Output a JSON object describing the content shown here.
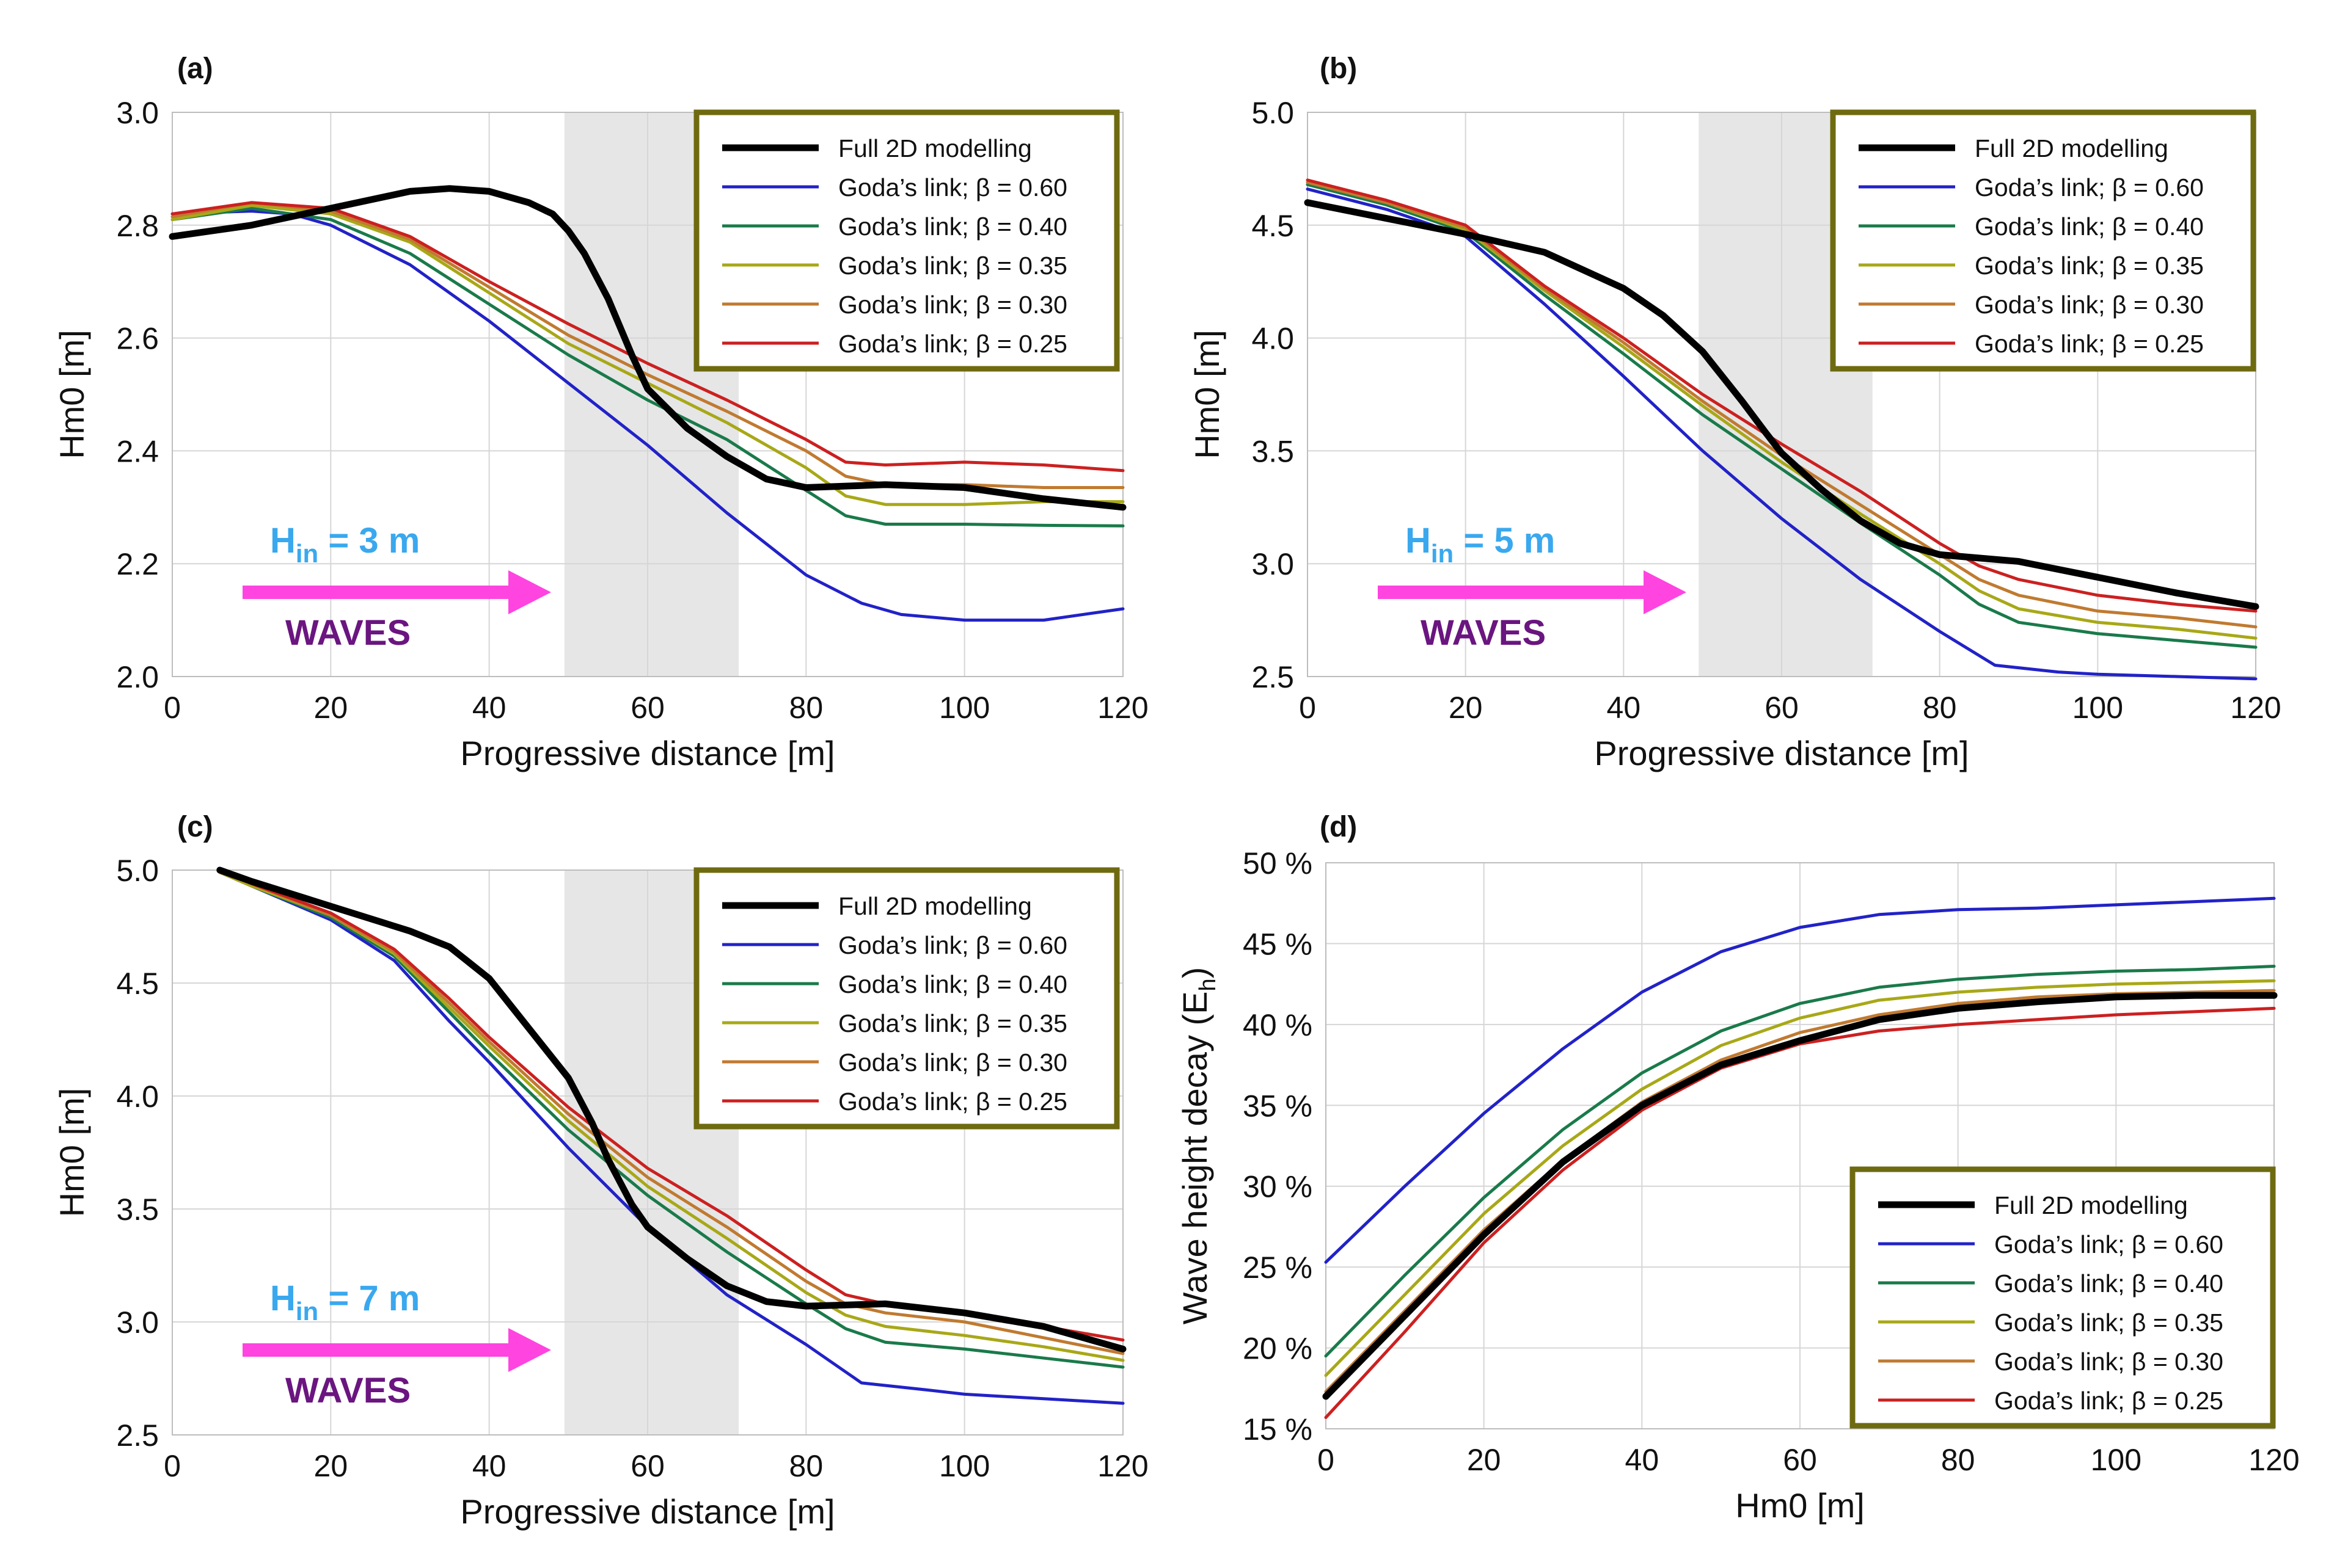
{
  "figure": {
    "legend_labels": [
      "Full 2D modelling",
      "Goda’s link; β = 0.60",
      "Goda’s link; β = 0.40",
      "Goda’s link; β = 0.35",
      "Goda’s link; β = 0.30",
      "Goda’s link; β = 0.25"
    ],
    "series_colors": [
      "#000000",
      "#2222c8",
      "#1a7a4a",
      "#a8a818",
      "#c07a30",
      "#cc2020"
    ],
    "colors": {
      "legend_border": "#6e6a10",
      "shaded_zone": "#e6e6e6",
      "arrow": "#ff44e0",
      "hin_text": "#3aa8ee",
      "waves_text": "#6a1580",
      "grid": "#d6d6d6"
    }
  },
  "chart_data": [
    {
      "type": "line",
      "panel_label": "(a)",
      "xlabel": "Progressive distance [m]",
      "ylabel": "Hm0 [m]",
      "xlim": [
        0,
        120
      ],
      "ylim": [
        2.0,
        3.0
      ],
      "xticks": [
        0,
        20,
        40,
        60,
        80,
        100,
        120
      ],
      "yticks": [
        2.0,
        2.2,
        2.4,
        2.6,
        2.8,
        3.0
      ],
      "ytick_labels": [
        "2.0",
        "2.2",
        "2.4",
        "2.6",
        "2.8",
        "3.0"
      ],
      "shaded_region": [
        49.5,
        71.5
      ],
      "annotation": {
        "hin_prefix": "H",
        "hin_sub": "in",
        "hin_suffix": " = 3 m",
        "waves": "WAVES"
      },
      "series": [
        {
          "name": "Full 2D modelling",
          "x": [
            0,
            10,
            20,
            30,
            35,
            40,
            45,
            48,
            50,
            52,
            55,
            58,
            60,
            65,
            70,
            75,
            80,
            90,
            100,
            110,
            120
          ],
          "y": [
            2.78,
            2.8,
            2.83,
            2.86,
            2.865,
            2.86,
            2.84,
            2.82,
            2.79,
            2.75,
            2.67,
            2.57,
            2.51,
            2.44,
            2.39,
            2.35,
            2.335,
            2.34,
            2.335,
            2.315,
            2.3
          ]
        },
        {
          "name": "Goda’s link; β = 0.60",
          "x": [
            0,
            10,
            15,
            20,
            30,
            40,
            50,
            60,
            70,
            80,
            87,
            92,
            100,
            110,
            120
          ],
          "y": [
            2.82,
            2.825,
            2.82,
            2.8,
            2.73,
            2.63,
            2.52,
            2.41,
            2.29,
            2.18,
            2.13,
            2.11,
            2.1,
            2.1,
            2.12
          ]
        },
        {
          "name": "Goda’s link; β = 0.40",
          "x": [
            0,
            10,
            20,
            30,
            40,
            50,
            60,
            70,
            80,
            85,
            90,
            100,
            110,
            120
          ],
          "y": [
            2.81,
            2.83,
            2.81,
            2.75,
            2.66,
            2.57,
            2.49,
            2.42,
            2.33,
            2.285,
            2.27,
            2.27,
            2.268,
            2.267
          ]
        },
        {
          "name": "Goda’s link; β = 0.35",
          "x": [
            0,
            10,
            20,
            30,
            40,
            50,
            60,
            70,
            80,
            85,
            90,
            100,
            110,
            120
          ],
          "y": [
            2.81,
            2.835,
            2.82,
            2.77,
            2.68,
            2.59,
            2.52,
            2.45,
            2.37,
            2.32,
            2.305,
            2.305,
            2.31,
            2.31
          ]
        },
        {
          "name": "Goda’s link; β = 0.30",
          "x": [
            0,
            10,
            20,
            30,
            40,
            50,
            60,
            70,
            80,
            85,
            90,
            100,
            110,
            120
          ],
          "y": [
            2.815,
            2.84,
            2.825,
            2.775,
            2.69,
            2.605,
            2.535,
            2.47,
            2.4,
            2.355,
            2.34,
            2.34,
            2.335,
            2.335
          ]
        },
        {
          "name": "Goda’s link; β = 0.25",
          "x": [
            0,
            10,
            20,
            30,
            40,
            50,
            60,
            70,
            80,
            85,
            90,
            100,
            110,
            120
          ],
          "y": [
            2.82,
            2.84,
            2.83,
            2.78,
            2.7,
            2.625,
            2.555,
            2.49,
            2.42,
            2.38,
            2.375,
            2.38,
            2.375,
            2.365
          ]
        }
      ]
    },
    {
      "type": "line",
      "panel_label": "(b)",
      "xlabel": "Progressive distance [m]",
      "ylabel": "Hm0 [m]",
      "xlim": [
        0,
        120
      ],
      "ylim": [
        2.5,
        5.0
      ],
      "xticks": [
        0,
        20,
        40,
        60,
        80,
        100,
        120
      ],
      "yticks": [
        2.5,
        3.0,
        3.5,
        4.0,
        4.5,
        5.0
      ],
      "ytick_labels": [
        "2.5",
        "3.0",
        "3.5",
        "4.0",
        "4.5",
        "5.0"
      ],
      "shaded_region": [
        49.5,
        71.5
      ],
      "annotation": {
        "hin_prefix": "H",
        "hin_sub": "in",
        "hin_suffix": " = 5 m",
        "waves": "WAVES"
      },
      "series": [
        {
          "name": "Full 2D modelling",
          "x": [
            0,
            10,
            20,
            30,
            40,
            45,
            50,
            55,
            58,
            60,
            65,
            70,
            75,
            80,
            90,
            100,
            110,
            120
          ],
          "y": [
            4.6,
            4.53,
            4.46,
            4.38,
            4.22,
            4.1,
            3.94,
            3.72,
            3.58,
            3.49,
            3.33,
            3.19,
            3.09,
            3.04,
            3.01,
            2.94,
            2.87,
            2.81
          ]
        },
        {
          "name": "Goda’s link; β = 0.60",
          "x": [
            0,
            10,
            20,
            30,
            40,
            50,
            60,
            70,
            80,
            87,
            95,
            100,
            110,
            120
          ],
          "y": [
            4.66,
            4.57,
            4.45,
            4.15,
            3.83,
            3.5,
            3.2,
            2.93,
            2.7,
            2.55,
            2.52,
            2.51,
            2.5,
            2.49
          ]
        },
        {
          "name": "Goda’s link; β = 0.40",
          "x": [
            0,
            10,
            20,
            30,
            40,
            50,
            60,
            70,
            80,
            85,
            90,
            100,
            110,
            120
          ],
          "y": [
            4.68,
            4.59,
            4.47,
            4.19,
            3.93,
            3.66,
            3.42,
            3.18,
            2.95,
            2.82,
            2.74,
            2.69,
            2.66,
            2.63
          ]
        },
        {
          "name": "Goda’s link; β = 0.35",
          "x": [
            0,
            10,
            20,
            30,
            40,
            50,
            60,
            70,
            80,
            85,
            90,
            100,
            110,
            120
          ],
          "y": [
            4.69,
            4.6,
            4.48,
            4.21,
            3.96,
            3.7,
            3.45,
            3.22,
            3.0,
            2.88,
            2.8,
            2.74,
            2.71,
            2.67
          ]
        },
        {
          "name": "Goda’s link; β = 0.30",
          "x": [
            0,
            10,
            20,
            30,
            40,
            50,
            60,
            70,
            80,
            85,
            90,
            100,
            110,
            120
          ],
          "y": [
            4.69,
            4.6,
            4.49,
            4.22,
            3.98,
            3.72,
            3.48,
            3.26,
            3.04,
            2.93,
            2.86,
            2.79,
            2.76,
            2.72
          ]
        },
        {
          "name": "Goda’s link; β = 0.25",
          "x": [
            0,
            10,
            20,
            30,
            40,
            50,
            60,
            70,
            80,
            85,
            90,
            100,
            110,
            120
          ],
          "y": [
            4.7,
            4.61,
            4.5,
            4.23,
            4.0,
            3.75,
            3.53,
            3.32,
            3.09,
            2.99,
            2.93,
            2.86,
            2.82,
            2.79
          ]
        }
      ]
    },
    {
      "type": "line",
      "panel_label": "(c)",
      "xlabel": "Progressive distance [m]",
      "ylabel": "Hm0 [m]",
      "xlim": [
        0,
        120
      ],
      "ylim": [
        2.5,
        5.0
      ],
      "xticks": [
        0,
        20,
        40,
        60,
        80,
        100,
        120
      ],
      "yticks": [
        2.5,
        3.0,
        3.5,
        4.0,
        4.5,
        5.0
      ],
      "ytick_labels": [
        "2.5",
        "3.0",
        "3.5",
        "4.0",
        "4.5",
        "5.0"
      ],
      "shaded_region": [
        49.5,
        71.5
      ],
      "annotation": {
        "hin_prefix": "H",
        "hin_sub": "in",
        "hin_suffix": " = 7 m",
        "waves": "WAVES"
      },
      "series": [
        {
          "name": "Full 2D modelling",
          "x": [
            6,
            10,
            20,
            30,
            35,
            40,
            45,
            50,
            53,
            55,
            58,
            60,
            65,
            70,
            75,
            80,
            90,
            100,
            110,
            120
          ],
          "y": [
            5.0,
            4.95,
            4.84,
            4.73,
            4.66,
            4.52,
            4.3,
            4.08,
            3.88,
            3.72,
            3.52,
            3.42,
            3.28,
            3.16,
            3.09,
            3.07,
            3.08,
            3.04,
            2.98,
            2.88
          ]
        },
        {
          "name": "Goda’s link; β = 0.60",
          "x": [
            6,
            10,
            20,
            28,
            35,
            40,
            50,
            60,
            70,
            80,
            87,
            95,
            100,
            110,
            120
          ],
          "y": [
            4.99,
            4.93,
            4.78,
            4.6,
            4.33,
            4.15,
            3.77,
            3.42,
            3.12,
            2.9,
            2.73,
            2.7,
            2.68,
            2.66,
            2.64
          ]
        },
        {
          "name": "Goda’s link; β = 0.40",
          "x": [
            6,
            10,
            20,
            28,
            35,
            40,
            50,
            60,
            70,
            80,
            85,
            90,
            100,
            110,
            120
          ],
          "y": [
            4.99,
            4.93,
            4.79,
            4.62,
            4.37,
            4.19,
            3.85,
            3.56,
            3.31,
            3.08,
            2.97,
            2.91,
            2.88,
            2.84,
            2.8
          ]
        },
        {
          "name": "Goda’s link; β = 0.35",
          "x": [
            6,
            10,
            20,
            28,
            35,
            40,
            50,
            60,
            70,
            80,
            85,
            90,
            100,
            110,
            120
          ],
          "y": [
            4.99,
            4.93,
            4.8,
            4.63,
            4.39,
            4.22,
            3.89,
            3.6,
            3.37,
            3.13,
            3.03,
            2.98,
            2.94,
            2.89,
            2.83
          ]
        },
        {
          "name": "Goda’s link; β = 0.30",
          "x": [
            6,
            10,
            20,
            28,
            35,
            40,
            50,
            60,
            70,
            80,
            85,
            90,
            100,
            110,
            120
          ],
          "y": [
            4.99,
            4.94,
            4.8,
            4.64,
            4.41,
            4.24,
            3.92,
            3.64,
            3.42,
            3.18,
            3.08,
            3.04,
            3.0,
            2.93,
            2.86
          ]
        },
        {
          "name": "Goda’s link; β = 0.25",
          "x": [
            6,
            10,
            20,
            28,
            35,
            40,
            50,
            60,
            70,
            80,
            85,
            90,
            100,
            110,
            120
          ],
          "y": [
            5.0,
            4.94,
            4.81,
            4.65,
            4.43,
            4.26,
            3.95,
            3.68,
            3.47,
            3.23,
            3.12,
            3.08,
            3.04,
            2.98,
            2.92
          ]
        }
      ]
    },
    {
      "type": "line",
      "panel_label": "(d)",
      "xlabel": "Hm0 [m]",
      "ylabel_prefix": "Wave height decay (E",
      "ylabel_sub": "h",
      "ylabel_suffix": ")",
      "xlim": [
        0,
        120
      ],
      "ylim": [
        15,
        50
      ],
      "xticks": [
        0,
        20,
        40,
        60,
        80,
        100,
        120
      ],
      "yticks": [
        15,
        20,
        25,
        30,
        35,
        40,
        45,
        50
      ],
      "ytick_labels": [
        "15 %",
        "20 %",
        "25 %",
        "30 %",
        "35 %",
        "40 %",
        "45 %",
        "50 %"
      ],
      "series": [
        {
          "name": "Full 2D modelling",
          "x": [
            0,
            10,
            20,
            30,
            40,
            50,
            60,
            70,
            80,
            90,
            100,
            110,
            120
          ],
          "y": [
            17.0,
            22.0,
            27.0,
            31.5,
            35.0,
            37.5,
            39.0,
            40.3,
            41.0,
            41.4,
            41.7,
            41.8,
            41.8
          ]
        },
        {
          "name": "Goda’s link; β = 0.60",
          "x": [
            0,
            10,
            20,
            30,
            40,
            50,
            60,
            70,
            80,
            90,
            100,
            110,
            120
          ],
          "y": [
            25.3,
            30.0,
            34.5,
            38.5,
            42.0,
            44.5,
            46.0,
            46.8,
            47.1,
            47.2,
            47.4,
            47.6,
            47.8
          ]
        },
        {
          "name": "Goda’s link; β = 0.40",
          "x": [
            0,
            10,
            20,
            30,
            40,
            50,
            60,
            70,
            80,
            90,
            100,
            110,
            120
          ],
          "y": [
            19.5,
            24.5,
            29.3,
            33.5,
            37.0,
            39.6,
            41.3,
            42.3,
            42.8,
            43.1,
            43.3,
            43.4,
            43.6
          ]
        },
        {
          "name": "Goda’s link; β = 0.35",
          "x": [
            0,
            10,
            20,
            30,
            40,
            50,
            60,
            70,
            80,
            90,
            100,
            110,
            120
          ],
          "y": [
            18.3,
            23.3,
            28.3,
            32.5,
            36.0,
            38.7,
            40.4,
            41.5,
            42.0,
            42.3,
            42.5,
            42.6,
            42.7
          ]
        },
        {
          "name": "Goda’s link; β = 0.30",
          "x": [
            0,
            10,
            20,
            30,
            40,
            50,
            60,
            70,
            80,
            90,
            100,
            110,
            120
          ],
          "y": [
            17.3,
            22.3,
            27.3,
            31.6,
            35.2,
            37.8,
            39.5,
            40.6,
            41.3,
            41.7,
            41.9,
            42.0,
            42.1
          ]
        },
        {
          "name": "Goda’s link; β = 0.25",
          "x": [
            0,
            10,
            20,
            30,
            40,
            50,
            60,
            70,
            80,
            90,
            100,
            110,
            120
          ],
          "y": [
            15.7,
            21.0,
            26.5,
            31.0,
            34.7,
            37.3,
            38.8,
            39.6,
            40.0,
            40.3,
            40.6,
            40.8,
            41.0
          ]
        }
      ]
    }
  ]
}
